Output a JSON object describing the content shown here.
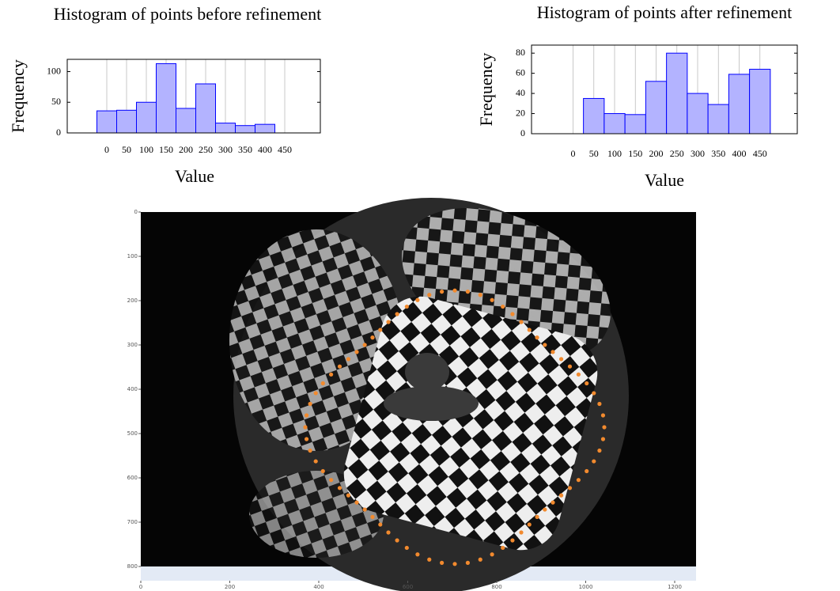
{
  "chart_data": [
    {
      "type": "bar",
      "title": "Histogram of points before refinement",
      "xlabel": "Value",
      "ylabel": "Frequency",
      "categories": [
        "0",
        "50",
        "100",
        "150",
        "200",
        "250",
        "300",
        "350",
        "400",
        "450"
      ],
      "values": [
        36,
        37,
        50,
        113,
        40,
        80,
        16,
        12,
        14,
        0
      ],
      "color": "#b3b3ff",
      "edgecolor": "#0000ff",
      "ylim": [
        0,
        120
      ],
      "yticks": [
        0,
        50,
        100
      ],
      "grid": true
    },
    {
      "type": "bar",
      "title": "Histogram of points after refinement",
      "xlabel": "Value",
      "ylabel": "Frequency",
      "categories": [
        "0",
        "50",
        "100",
        "150",
        "200",
        "250",
        "300",
        "350",
        "400",
        "450"
      ],
      "values": [
        0,
        35,
        20,
        19,
        52,
        80,
        40,
        29,
        59,
        64
      ],
      "color": "#b3b3ff",
      "edgecolor": "#0000ff",
      "ylim": [
        0,
        88
      ],
      "yticks": [
        0,
        20,
        40,
        60,
        80
      ],
      "grid": true
    },
    {
      "type": "image",
      "xlim": [
        0,
        1248
      ],
      "ylim": [
        800,
        0
      ],
      "xticks": [
        0,
        200,
        400,
        600,
        800,
        1000,
        1200
      ],
      "yticks": [
        0,
        100,
        200,
        300,
        400,
        500,
        600,
        700,
        800
      ]
    }
  ]
}
